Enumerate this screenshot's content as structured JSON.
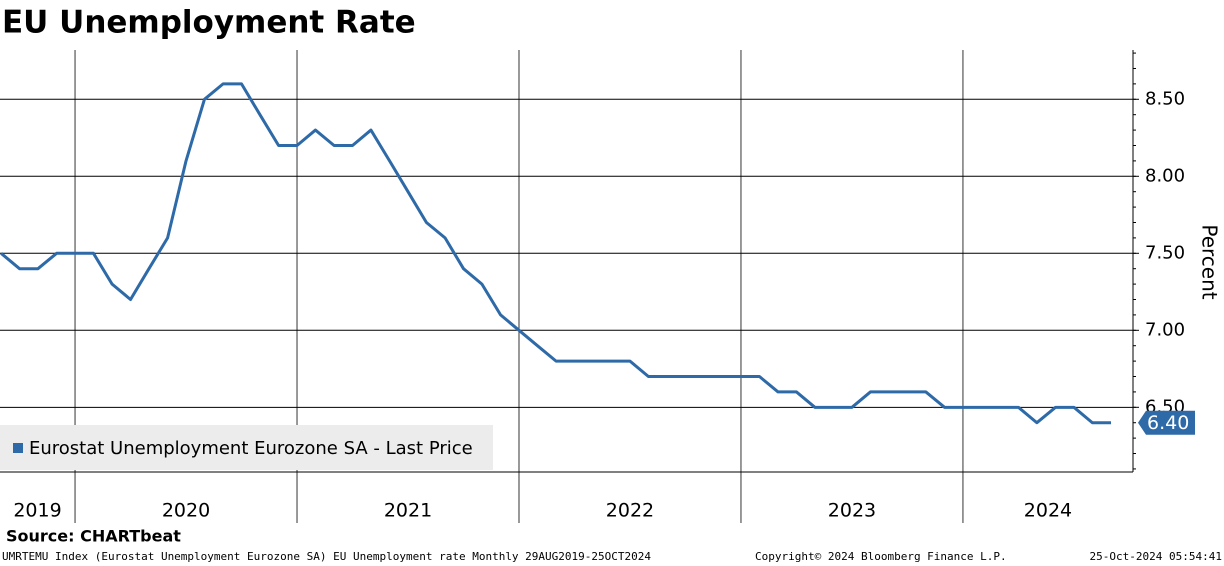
{
  "chart_data": {
    "type": "line",
    "title": "EU Unemployment Rate",
    "y_label": "Percent",
    "x": [
      2019.667,
      2019.75,
      2019.833,
      2019.917,
      2020.0,
      2020.083,
      2020.167,
      2020.25,
      2020.333,
      2020.417,
      2020.5,
      2020.583,
      2020.667,
      2020.75,
      2020.833,
      2020.917,
      2021.0,
      2021.083,
      2021.167,
      2021.25,
      2021.333,
      2021.417,
      2021.5,
      2021.583,
      2021.667,
      2021.75,
      2021.833,
      2021.917,
      2022.0,
      2022.083,
      2022.167,
      2022.25,
      2022.333,
      2022.417,
      2022.5,
      2022.583,
      2022.667,
      2022.75,
      2022.833,
      2022.917,
      2023.0,
      2023.083,
      2023.167,
      2023.25,
      2023.333,
      2023.417,
      2023.5,
      2023.583,
      2023.667,
      2023.75,
      2023.833,
      2023.917,
      2024.0,
      2024.083,
      2024.167,
      2024.25,
      2024.333,
      2024.417,
      2024.5,
      2024.583,
      2024.667
    ],
    "series": [
      {
        "name": "Eurostat Unemployment Eurozone SA - Last Price",
        "color": "#2e6aa8",
        "values": [
          7.5,
          7.4,
          7.4,
          7.5,
          7.5,
          7.5,
          7.3,
          7.2,
          7.4,
          7.6,
          8.1,
          8.5,
          8.6,
          8.6,
          8.4,
          8.2,
          8.2,
          8.3,
          8.2,
          8.2,
          8.3,
          8.1,
          7.9,
          7.7,
          7.6,
          7.4,
          7.3,
          7.1,
          7.0,
          6.9,
          6.8,
          6.8,
          6.8,
          6.8,
          6.8,
          6.7,
          6.7,
          6.7,
          6.7,
          6.7,
          6.7,
          6.7,
          6.6,
          6.6,
          6.5,
          6.5,
          6.5,
          6.6,
          6.6,
          6.6,
          6.6,
          6.5,
          6.5,
          6.5,
          6.5,
          6.5,
          6.4,
          6.5,
          6.5,
          6.4,
          6.4
        ],
        "last_label": "6.40"
      }
    ],
    "xlim": [
      2019.662,
      2024.766
    ],
    "xticks": [
      2020,
      2021,
      2022,
      2023,
      2024
    ],
    "year_labels": [
      2019,
      2020,
      2021,
      2022,
      2023,
      2024
    ],
    "ylim": [
      6.08,
      8.82
    ],
    "yticks": [
      {
        "value": 6.5,
        "label": "6.50"
      },
      {
        "value": 7,
        "label": "7.00"
      },
      {
        "value": 7.5,
        "label": "7.50"
      },
      {
        "value": 8,
        "label": "8.00"
      },
      {
        "value": 8.5,
        "label": "8.50"
      }
    ],
    "grid": true,
    "legend": "bottom-left",
    "source": "Source:  CHARTbeat",
    "footer": [
      "UMRTEMU Index (Eurostat Unemployment Eurozone SA) EU Unemployment rate  Monthly 29AUG2019-25OCT2024",
      "Copyright© 2024 Bloomberg Finance L.P.",
      "25-Oct-2024 05:54:41"
    ]
  }
}
